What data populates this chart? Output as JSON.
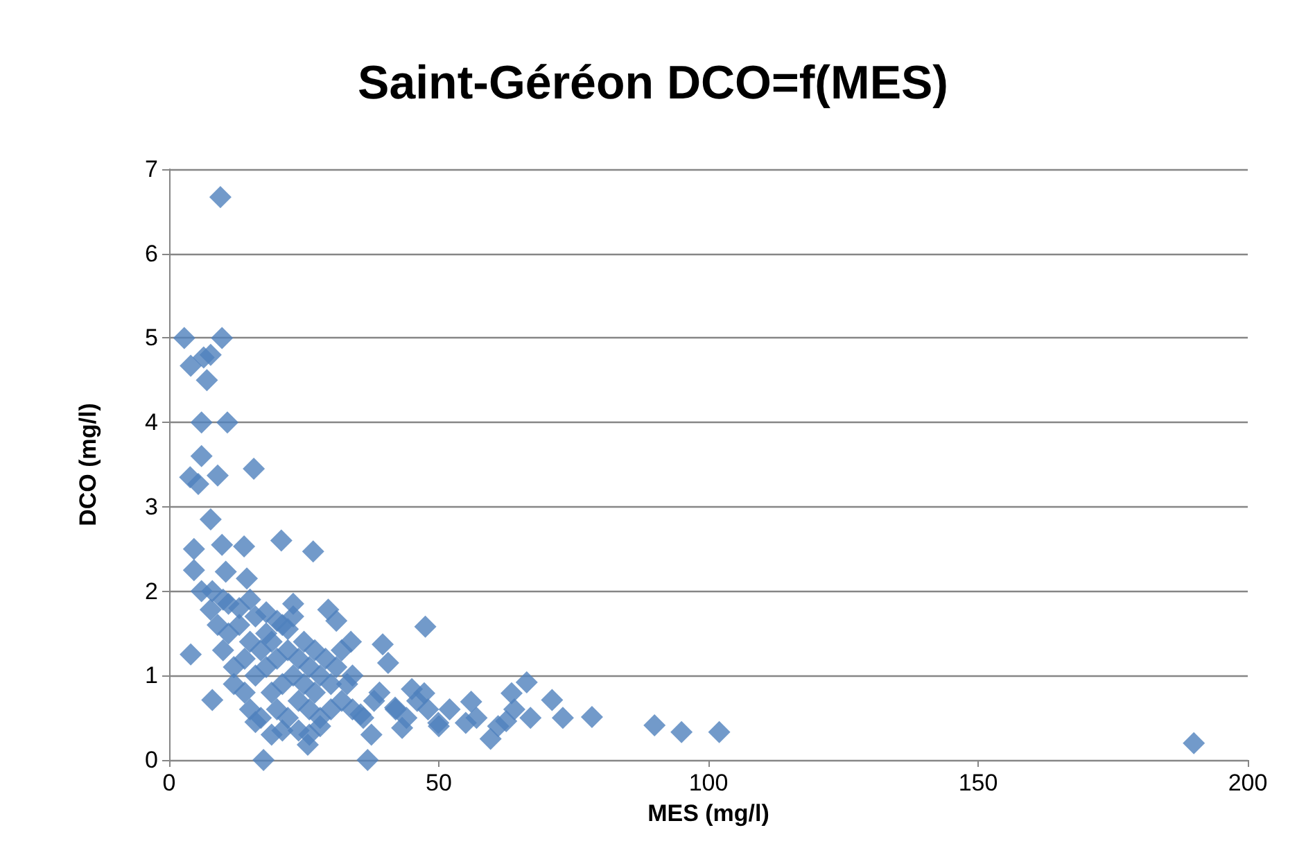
{
  "chart_data": {
    "type": "scatter",
    "title": "Saint-Géréon DCO=f(MES)",
    "xlabel": "MES (mg/l)",
    "ylabel": "DCO (mg/l)",
    "xlim": [
      0,
      200
    ],
    "xticks": [
      0,
      50,
      100,
      150,
      200
    ],
    "ylim": [
      0,
      7
    ],
    "yticks": [
      0,
      1,
      2,
      3,
      4,
      5,
      6,
      7
    ],
    "grid": "y",
    "marker": "diamond",
    "series": [
      {
        "color": "#4f81bd",
        "x": [
          9.5,
          2.8,
          9.8,
          4,
          6.4,
          7.7,
          7,
          6,
          10.8,
          15.7,
          3.9,
          5.4,
          6,
          9,
          7.7,
          4.6,
          9.8,
          13.9,
          20.8,
          26.7,
          4.6,
          10.5,
          14.4,
          6,
          7.7,
          23,
          29.5,
          31,
          47.5,
          39.6,
          40.6,
          33.7,
          4,
          8,
          17.5,
          36.8,
          25.7,
          190,
          102,
          95,
          90,
          78.4,
          73,
          71,
          66.3,
          67,
          63.5,
          62.5,
          59.6,
          56,
          55,
          49.9,
          47.3,
          45,
          41.9,
          43.2,
          37.5,
          35.5,
          9,
          10,
          11,
          12,
          12,
          13,
          14,
          14,
          15,
          15,
          16,
          16,
          17,
          17,
          18,
          18,
          19,
          19,
          20,
          20,
          21,
          21,
          22,
          22,
          23,
          23,
          24,
          24,
          25,
          25,
          26,
          26,
          27,
          27,
          28,
          28,
          29,
          30,
          30,
          31,
          32,
          32,
          33,
          34,
          34,
          36,
          38,
          39,
          42,
          44,
          46,
          48,
          50,
          52,
          57,
          61,
          64,
          13,
          15,
          18,
          20,
          22,
          24,
          26,
          28,
          19,
          21,
          11,
          16,
          8,
          10
        ],
        "values": [
          6.67,
          5.0,
          5.0,
          4.67,
          4.77,
          4.8,
          4.5,
          4.0,
          4.0,
          3.45,
          3.35,
          3.27,
          3.6,
          3.37,
          2.85,
          2.5,
          2.55,
          2.53,
          2.6,
          2.47,
          2.25,
          2.23,
          2.15,
          2.0,
          1.78,
          1.85,
          1.78,
          1.65,
          1.58,
          1.37,
          1.15,
          1.4,
          1.25,
          0.71,
          0,
          0,
          0.18,
          0.2,
          0.33,
          0.33,
          0.41,
          0.51,
          0.5,
          0.71,
          0.92,
          0.5,
          0.79,
          0.46,
          0.25,
          0.69,
          0.44,
          0.44,
          0.79,
          0.84,
          0.62,
          0.38,
          0.3,
          0.54,
          1.6,
          1.3,
          1.5,
          1.1,
          0.9,
          1.6,
          1.2,
          0.8,
          1.4,
          0.6,
          1.0,
          1.7,
          1.3,
          0.5,
          1.1,
          1.5,
          0.8,
          1.4,
          1.2,
          0.6,
          1.6,
          0.9,
          1.3,
          0.5,
          1.0,
          1.7,
          1.2,
          0.7,
          1.4,
          0.9,
          1.1,
          0.6,
          1.3,
          0.8,
          1.0,
          0.5,
          1.2,
          0.9,
          0.6,
          1.1,
          0.7,
          1.3,
          0.9,
          0.6,
          1.0,
          0.5,
          0.7,
          0.8,
          0.6,
          0.5,
          0.7,
          0.6,
          0.4,
          0.6,
          0.5,
          0.4,
          0.6,
          1.8,
          1.9,
          1.75,
          1.65,
          1.55,
          0.35,
          0.3,
          0.4,
          0.3,
          0.35,
          1.85,
          0.45,
          2.0,
          1.9
        ]
      }
    ]
  }
}
